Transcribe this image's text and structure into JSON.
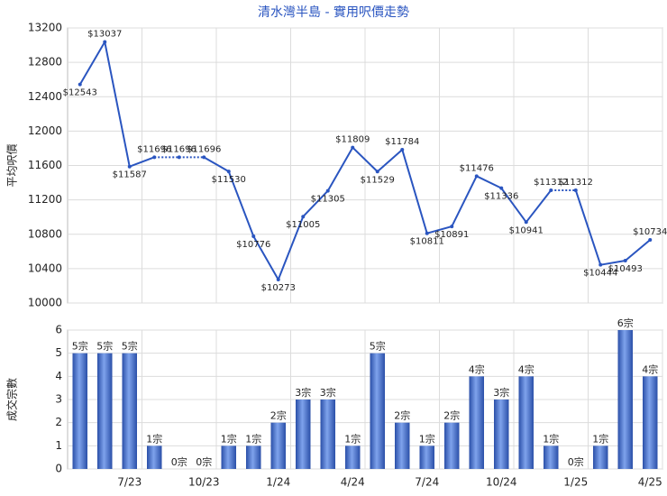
{
  "chart_data": [
    {
      "type": "line",
      "title": "清水灣半島 - 實用呎價走勢",
      "ylabel": "平均呎價",
      "color": "#2a55c0",
      "categories": [
        null,
        null,
        "7/23",
        null,
        null,
        "10/23",
        null,
        null,
        "1/24",
        null,
        null,
        "4/24",
        null,
        null,
        "7/24",
        null,
        null,
        "10/24",
        null,
        null,
        "1/25",
        null,
        null,
        "4/25"
      ],
      "values": [
        12543,
        13037,
        11587,
        11696,
        11696,
        11696,
        11530,
        10776,
        10273,
        11005,
        11305,
        11809,
        11529,
        11784,
        10811,
        10891,
        11476,
        11336,
        10941,
        11312,
        11312,
        10444,
        10493,
        10734
      ],
      "value_labels": [
        "$12543",
        "$13037",
        "$11587",
        "$11696",
        "$11696",
        "$11696",
        "$11530",
        "$10776",
        "$10273",
        "$11005",
        "$11305",
        "$11809",
        "$11529",
        "$11784",
        "$10811",
        "$10891",
        "$11476",
        "$11336",
        "$10941",
        "$11312",
        "$11312",
        "$10444",
        "$10493",
        "$10734"
      ],
      "ylim": [
        10000,
        13200
      ],
      "yticks": [
        10000,
        10400,
        10800,
        11200,
        11600,
        12000,
        12400,
        12800,
        13200
      ],
      "grid": true
    },
    {
      "type": "bar",
      "ylabel": "成交宗數",
      "color": "#3f6fd0",
      "categories": [
        null,
        null,
        "7/23",
        null,
        null,
        "10/23",
        null,
        null,
        "1/24",
        null,
        null,
        "4/24",
        null,
        null,
        "7/24",
        null,
        null,
        "10/24",
        null,
        null,
        "1/25",
        null,
        null,
        "4/25"
      ],
      "values": [
        5,
        5,
        5,
        1,
        0,
        0,
        1,
        1,
        2,
        3,
        3,
        1,
        5,
        2,
        1,
        2,
        4,
        3,
        4,
        1,
        0,
        1,
        6,
        4
      ],
      "value_labels": [
        "5宗",
        "5宗",
        "5宗",
        "1宗",
        "0宗",
        "0宗",
        "1宗",
        "1宗",
        "2宗",
        "3宗",
        "3宗",
        "1宗",
        "5宗",
        "2宗",
        "1宗",
        "2宗",
        "4宗",
        "3宗",
        "4宗",
        "1宗",
        "0宗",
        "1宗",
        "6宗",
        "4宗"
      ],
      "ylim": [
        0,
        6
      ],
      "yticks": [
        0,
        1,
        2,
        3,
        4,
        5,
        6
      ],
      "grid": true
    }
  ]
}
